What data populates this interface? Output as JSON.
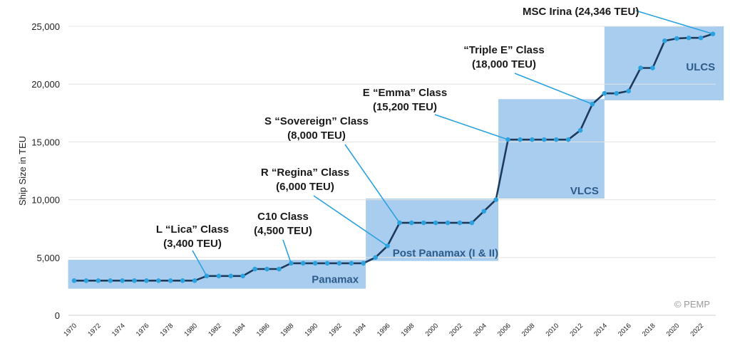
{
  "chart_data": {
    "type": "line",
    "ylabel": "Ship Size in TEU",
    "ylim": [
      0,
      25000
    ],
    "yticks": [
      0,
      5000,
      10000,
      15000,
      20000,
      25000
    ],
    "ytick_labels": [
      "0",
      "5,000",
      "10,000",
      "15,000",
      "20,000",
      "25,000"
    ],
    "xlim": [
      1970,
      2023
    ],
    "xticks": [
      1970,
      1972,
      1974,
      1976,
      1978,
      1980,
      1982,
      1984,
      1986,
      1988,
      1990,
      1992,
      1994,
      1996,
      1998,
      2000,
      2002,
      2004,
      2006,
      2008,
      2010,
      2012,
      2014,
      2016,
      2018,
      2020,
      2022
    ],
    "grid": true,
    "series": [
      {
        "x": [
          1970,
          1971,
          1972,
          1973,
          1974,
          1975,
          1976,
          1977,
          1978,
          1979,
          1980,
          1981,
          1982,
          1983,
          1984,
          1985,
          1986,
          1987,
          1988,
          1989,
          1990,
          1991,
          1992,
          1993,
          1994,
          1995,
          1996,
          1997,
          1998,
          1999,
          2000,
          2001,
          2002,
          2003,
          2004,
          2005,
          2006,
          2007,
          2008,
          2009,
          2010,
          2011,
          2012,
          2013,
          2014,
          2015,
          2016,
          2017,
          2018,
          2019,
          2020,
          2021,
          2022,
          2023
        ],
        "values": [
          3000,
          3000,
          3000,
          3000,
          3000,
          3000,
          3000,
          3000,
          3000,
          3000,
          3000,
          3400,
          3400,
          3400,
          3400,
          4000,
          4000,
          4000,
          4500,
          4500,
          4500,
          4500,
          4500,
          4500,
          4500,
          5000,
          6000,
          8000,
          8000,
          8000,
          8000,
          8000,
          8000,
          8000,
          9000,
          10000,
          15200,
          15200,
          15200,
          15200,
          15200,
          15200,
          16000,
          18270,
          19200,
          19200,
          19400,
          21400,
          21400,
          23750,
          23950,
          24000,
          24000,
          24346
        ]
      }
    ],
    "bands": [
      {
        "label": "Panamax",
        "x0": 1969.5,
        "x1": 1994.2,
        "y0": 2300,
        "y1": 4800
      },
      {
        "label": "Post Panamax (I & II)",
        "x0": 1994.2,
        "x1": 2005.2,
        "y0": 4700,
        "y1": 10100
      },
      {
        "label": "VLCS",
        "x0": 2005.2,
        "x1": 2014,
        "y0": 10100,
        "y1": 18700
      },
      {
        "label": "ULCS",
        "x0": 2014,
        "x1": 2023.9,
        "y0": 18600,
        "y1": 25000
      }
    ],
    "annotations": [
      {
        "lines": [
          "L “Lica” Class",
          "(3,400 TEU)"
        ],
        "point": [
          1981,
          3400
        ]
      },
      {
        "lines": [
          "C10 Class",
          "(4,500 TEU)"
        ],
        "point": [
          1988,
          4500
        ]
      },
      {
        "lines": [
          "R “Regina” Class",
          "(6,000 TEU)"
        ],
        "point": [
          1996,
          6000
        ]
      },
      {
        "lines": [
          "S “Sovereign” Class",
          "(8,000 TEU)"
        ],
        "point": [
          1997,
          8000
        ]
      },
      {
        "lines": [
          "E “Emma” Class",
          "(15,200 TEU)"
        ],
        "point": [
          2006,
          15200
        ]
      },
      {
        "lines": [
          "“Triple E” Class",
          "(18,000 TEU)"
        ],
        "point": [
          2013,
          18270
        ]
      },
      {
        "lines": [
          "MSC Irina (24,346 TEU)"
        ],
        "point": [
          2023,
          24346
        ]
      }
    ],
    "watermark": "© PEMP",
    "colors": {
      "band": "#a8cdee",
      "line": "#1d3a5c",
      "marker": "#2aa2e0",
      "leader": "#2aa2e0",
      "grid": "#e3e3e3",
      "band_text": "#2e5c8a"
    }
  }
}
